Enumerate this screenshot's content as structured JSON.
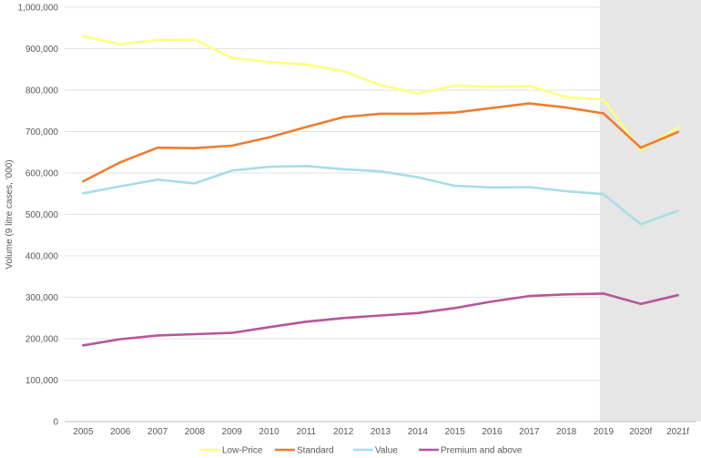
{
  "chart_data": {
    "type": "line",
    "title": "",
    "xlabel": "",
    "ylabel": "Volume (9 litre cases, '000)",
    "ylim": [
      0,
      1000000
    ],
    "yticks": [
      "0",
      "100,000",
      "200,000",
      "300,000",
      "400,000",
      "500,000",
      "600,000",
      "700,000",
      "800,000",
      "900,000",
      "1,000,000"
    ],
    "categories": [
      "2005",
      "2006",
      "2007",
      "2008",
      "2009",
      "2010",
      "2011",
      "2012",
      "2013",
      "2014",
      "2015",
      "2016",
      "2017",
      "2018",
      "2019",
      "2020f",
      "2021f"
    ],
    "forecast_region": {
      "from": "2019",
      "to": "2021f",
      "color": "#e6e6e6"
    },
    "grid": true,
    "legend_position": "bottom",
    "series": [
      {
        "name": "Low-Price",
        "color": "#ffff80",
        "values": [
          930000,
          911000,
          921000,
          922000,
          878000,
          868000,
          862000,
          846000,
          812000,
          792000,
          811000,
          808000,
          810000,
          783000,
          777000,
          655000,
          710000
        ]
      },
      {
        "name": "Standard",
        "color": "#ed7d31",
        "values": [
          580000,
          626000,
          661000,
          660000,
          666000,
          686000,
          711000,
          735000,
          743000,
          743000,
          746000,
          757000,
          768000,
          758000,
          744000,
          661000,
          699000
        ]
      },
      {
        "name": "Value",
        "color": "#a8dde7",
        "values": [
          551000,
          568000,
          584000,
          575000,
          606000,
          615000,
          617000,
          609000,
          604000,
          590000,
          569000,
          565000,
          566000,
          556000,
          549000,
          476000,
          509000
        ]
      },
      {
        "name": "Premium and above",
        "color": "#b7569a",
        "values": [
          184000,
          199000,
          208000,
          211000,
          214000,
          228000,
          241000,
          250000,
          256000,
          262000,
          274000,
          290000,
          303000,
          307000,
          309000,
          284000,
          305000
        ]
      }
    ]
  }
}
